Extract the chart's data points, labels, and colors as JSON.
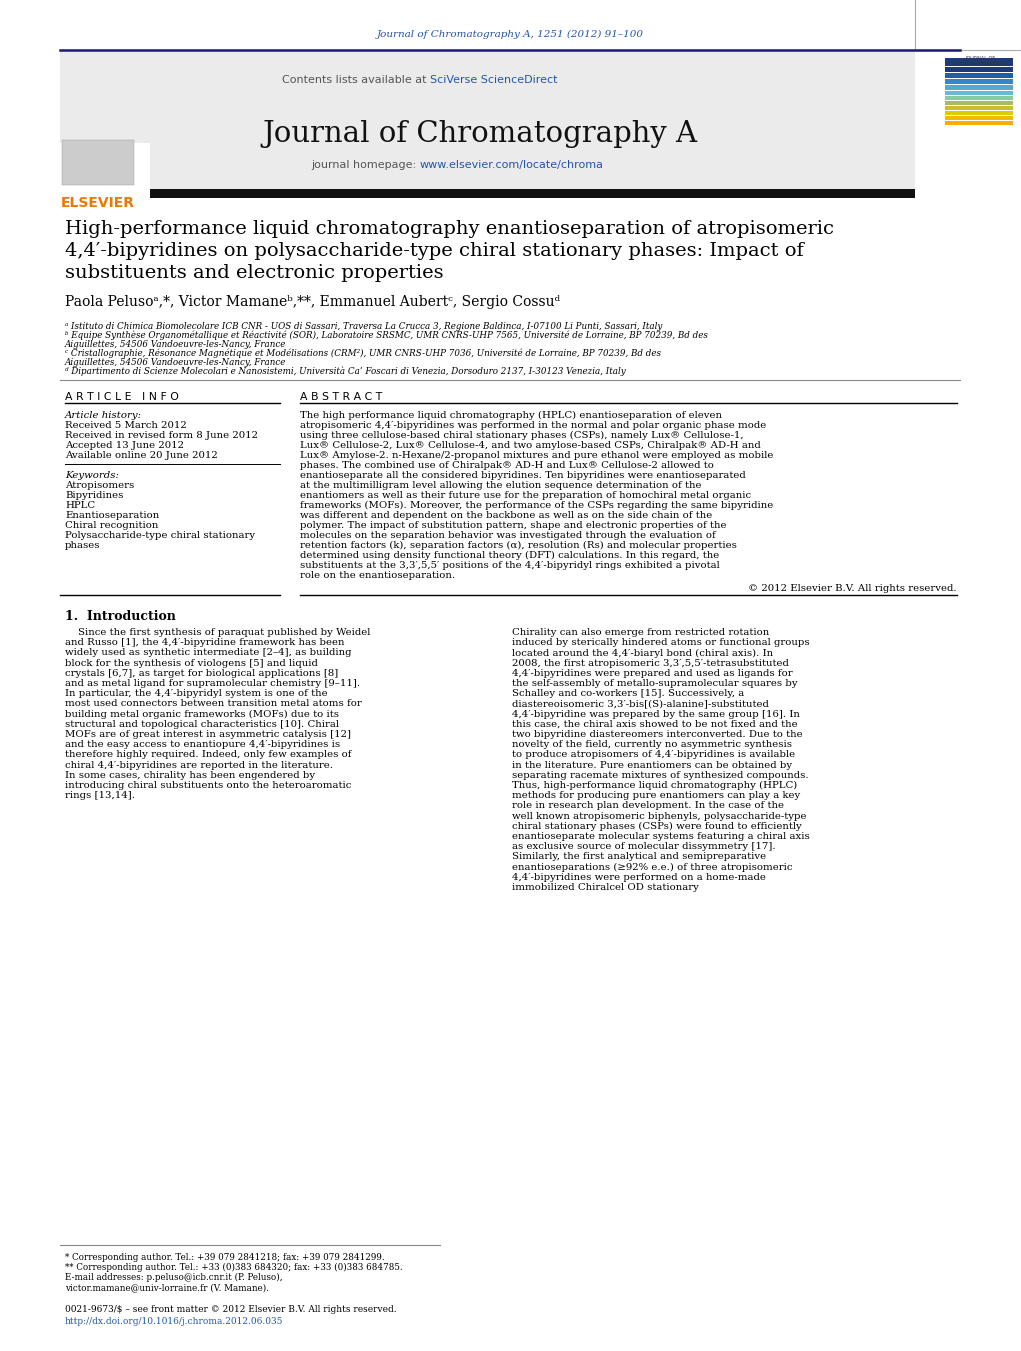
{
  "page_bg": "#ffffff",
  "top_citation": "Journal of Chromatography A, 1251 (2012) 91–100",
  "journal_name": "Journal of Chromatography A",
  "contents_text": "Contents lists available at SciVerse ScienceDirect",
  "homepage_text": "journal homepage: www.elsevier.com/locate/chroma",
  "title_line1": "High-performance liquid chromatography enantioseparation of atropisomeric",
  "title_line2": "4,4′-bipyridines on polysaccharide-type chiral stationary phases: Impact of",
  "title_line3": "substituents and electronic properties",
  "authors_line": "Paola Pelusoᵃ,*, Victor Mamaneᵇ,**, Emmanuel Aubertᶜ, Sergio Cossuᵈ",
  "affil_a": "ᵃ Istituto di Chimica Biomolecolare ICB CNR - UOS di Sassari, Traversa La Crucca 3, Regione Baldinca, I-07100 Li Punti, Sassari, Italy",
  "affil_b": "ᵇ Equipe Synthèse Organométallique et Réactivité (SOR), Laboratoire SRSMC, UMR CNRS-UHP 7565, Université de Lorraine, BP 70239, Bd des Aiguillettes, 54506 Vandoeuvre-les-Nancy, France",
  "affil_c": "ᶜ Cristallographie, Résonance Magnétique et Modélisations (CRM²), UMR CNRS-UHP 7036, Université de Lorraine, BP 70239, Bd des Aiguillettes, 54506 Vandoeuvre-les-Nancy, France",
  "affil_d": "ᵈ Dipartimento di Scienze Molecolari e Nanosistemi, Università Ca’ Foscari di Venezia, Dorsoduro 2137, I-30123 Venezia, Italy",
  "article_info_header": "A R T I C L E   I N F O",
  "abstract_header": "A B S T R A C T",
  "article_history_label": "Article history:",
  "received1": "Received 5 March 2012",
  "received_revised": "Received in revised form 8 June 2012",
  "accepted": "Accepted 13 June 2012",
  "available": "Available online 20 June 2012",
  "keywords_label": "Keywords:",
  "keywords": [
    "Atropisomers",
    "Bipyridines",
    "HPLC",
    "Enantioseparation",
    "Chiral recognition",
    "Polysaccharide-type chiral stationary",
    "phases"
  ],
  "abstract_text": "The high performance liquid chromatography (HPLC) enantioseparation of eleven atropisomeric 4,4′-bipyridines was performed in the normal and polar organic phase mode using three cellulose-based chiral stationary phases (CSPs), namely Lux® Cellulose-1, Lux® Cellulose-2, Lux® Cellulose-4, and two amylose-based CSPs, Chiralpak® AD-H and Lux® Amylose-2. n-Hexane/2-propanol mixtures and pure ethanol were employed as mobile phases. The combined use of Chiralpak® AD-H and Lux® Cellulose-2 allowed to enantioseparate all the considered bipyridines. Ten bipyridines were enantioseparated at the multimilligram level allowing the elution sequence determination of the enantiomers as well as their future use for the preparation of homochiral metal organic frameworks (MOFs). Moreover, the performance of the CSPs regarding the same bipyridine was different and dependent on the backbone as well as on the side chain of the polymer. The impact of substitution pattern, shape and electronic properties of the molecules on the separation behavior was investigated through the evaluation of retention factors (k), separation factors (α), resolution (Rs) and molecular properties determined using density functional theory (DFT) calculations. In this regard, the substituents at the 3,3′,5,5′ positions of the 4,4′-bipyridyl rings exhibited a pivotal role on the enantioseparation.",
  "copyright_text": "© 2012 Elsevier B.V. All rights reserved.",
  "intro_header": "1.  Introduction",
  "intro_col1": "Since the first synthesis of paraquat published by Weidel and Russo [1], the 4,4′-bipyridine framework has been widely used as synthetic intermediate [2–4], as building block for the synthesis of viologens [5] and liquid crystals [6,7], as target for biological applications [8] and as metal ligand for supramolecular chemistry [9–11]. In particular, the 4,4′-bipyridyl system is one of the most used connectors between transition metal atoms for building metal organic frameworks (MOFs) due to its structural and topological characteristics [10]. Chiral MOFs are of great interest in asymmetric catalysis [12] and the easy access to enantiopure 4,4′-bipyridines is therefore highly required. Indeed, only few examples of chiral 4,4′-bipyridines are reported in the literature. In some cases, chirality has been engendered by introducing chiral substituents onto the heteroaromatic rings [13,14].",
  "intro_col2": "Chirality can also emerge from restricted rotation induced by sterically hindered atoms or functional groups located around the 4,4′-biaryl bond (chiral axis). In 2008, the first atropisomeric 3,3′,5,5′-tetrasubstituted 4,4′-bipyridines were prepared and used as ligands for the self-assembly of metallo-supramolecular squares by Schalley and co-workers [15]. Successively, a diastereoisomeric 3,3′-bis[(S)-alanine]-substituted 4,4′-bipyridine was prepared by the same group [16]. In this case, the chiral axis showed to be not fixed and the two bipyridine diastereomers interconverted.\n    Due to the novelty of the field, currently no asymmetric synthesis to produce atropisomers of 4,4′-bipyridines is available in the literature. Pure enantiomers can be obtained by separating racemate mixtures of synthesized compounds. Thus, high-performance liquid chromatography (HPLC) methods for producing pure enantiomers can play a key role in research plan development. In the case of the well known atropisomeric biphenyls, polysaccharide-type chiral stationary phases (CSPs) were found to efficiently enantioseparate molecular systems featuring a chiral axis as exclusive source of molecular dissymmetry [17]. Similarly, the first analytical and semipreparative enantioseparations (≥92% e.e.) of three atropisomeric 4,4′-bipyridines were performed on a home-made immobilized Chiralcel OD stationary",
  "footnote1": "* Corresponding author. Tel.: +39 079 2841218; fax: +39 079 2841299.",
  "footnote2": "** Corresponding author. Tel.: +33 (0)383 684320; fax: +33 (0)383 684785.",
  "footnote3": "E-mail addresses: p.peluso@icb.cnr.it (P. Peluso),",
  "footnote4": "victor.mamane@univ-lorraine.fr (V. Mamane).",
  "issn_text": "0021-9673/$ – see front matter © 2012 Elsevier B.V. All rights reserved.",
  "doi_text": "http://dx.doi.org/10.1016/j.chroma.2012.06.035",
  "header_bar_color": "#1a1a6e",
  "elsevier_orange": "#f07800",
  "link_color": "#2255aa",
  "title_color": "#000000",
  "text_color": "#000000",
  "gray_bg": "#ebebeb"
}
